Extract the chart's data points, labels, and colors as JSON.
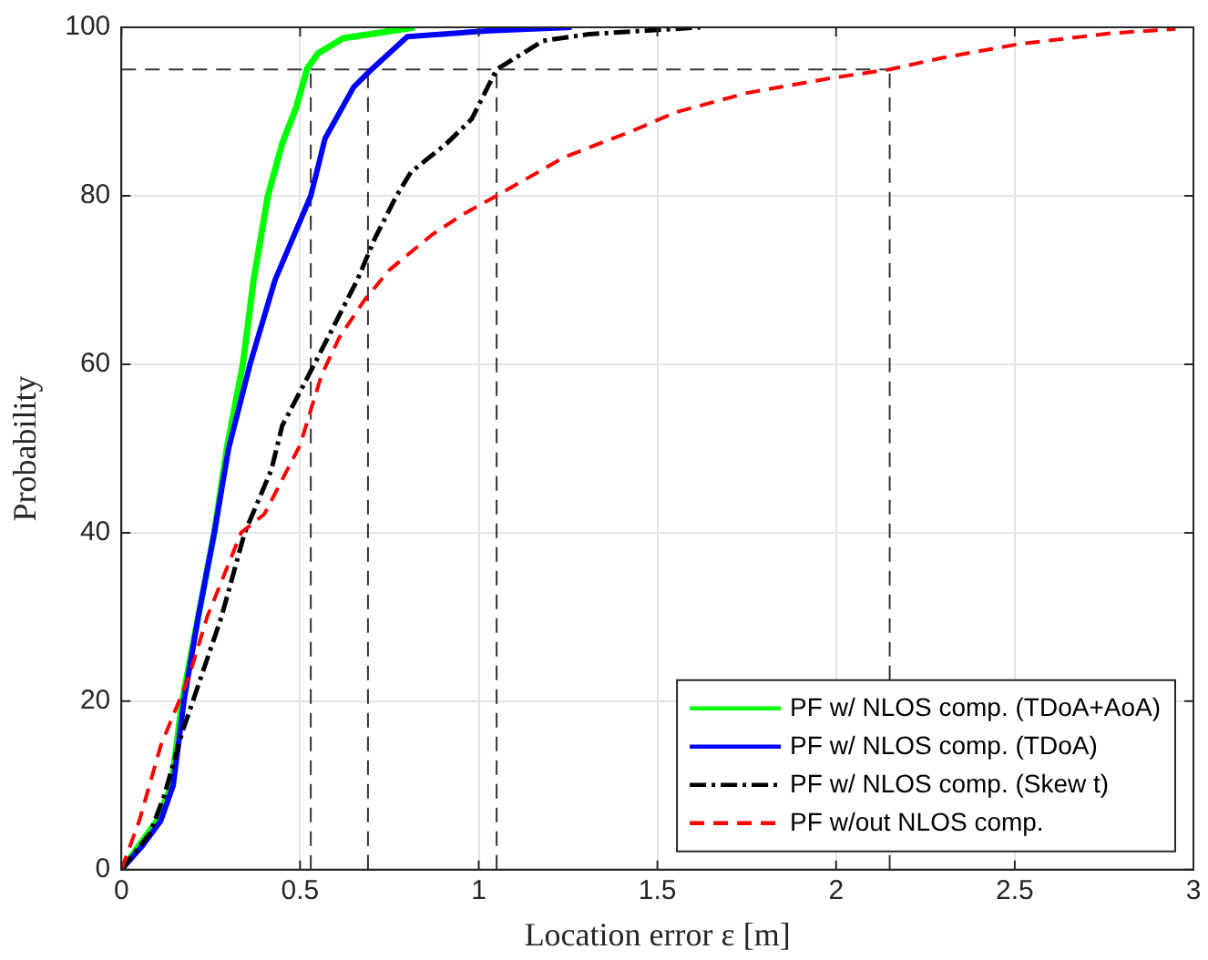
{
  "chart_data": {
    "type": "line",
    "xlabel": "Location error ε [m]",
    "ylabel": "Probability",
    "xlim": [
      0,
      3
    ],
    "ylim": [
      0,
      100
    ],
    "xticks": [
      0,
      0.5,
      1,
      1.5,
      2,
      2.5,
      3
    ],
    "yticks": [
      0,
      20,
      40,
      60,
      80,
      100
    ],
    "grid": true,
    "legend": "bottom right",
    "marker": "none",
    "series": [
      {
        "name": "PF w/ NLOS comp. (TDoA+AoA)",
        "color": "#00ff00",
        "line_style": "solid",
        "x": [
          0,
          0.05,
          0.1,
          0.14,
          0.17,
          0.215,
          0.26,
          0.295,
          0.34,
          0.37,
          0.41,
          0.45,
          0.49,
          0.52,
          0.55,
          0.62,
          0.73,
          0.82
        ],
        "values": [
          0,
          2.9,
          5.8,
          10,
          20,
          30,
          40,
          50,
          60,
          70,
          80,
          86.2,
          90.6,
          95.1,
          96.9,
          98.7,
          99.4,
          100
        ]
      },
      {
        "name": "PF w/ NLOS comp. (TDoA)",
        "color": "#0000ff",
        "line_style": "solid",
        "x": [
          0,
          0.06,
          0.11,
          0.145,
          0.175,
          0.215,
          0.26,
          0.3,
          0.36,
          0.43,
          0.53,
          0.57,
          0.65,
          0.7,
          0.8,
          1.03,
          1.26
        ],
        "values": [
          0,
          2.9,
          5.8,
          10,
          20,
          30,
          40,
          50,
          60,
          70,
          80,
          86.8,
          92.9,
          95,
          98.9,
          99.6,
          100
        ]
      },
      {
        "name": "PF w/ NLOS comp. (Skew t)",
        "color": "#000000",
        "line_style": "dashdot",
        "x": [
          0,
          0.08,
          0.12,
          0.17,
          0.2,
          0.28,
          0.345,
          0.42,
          0.45,
          0.54,
          0.66,
          0.71,
          0.77,
          0.81,
          0.91,
          0.98,
          1.05,
          1.18,
          1.31,
          1.62
        ],
        "values": [
          0,
          4.3,
          8.8,
          16.3,
          20,
          30,
          40,
          47.5,
          52.7,
          60,
          70,
          75,
          80,
          82.8,
          86.2,
          89.1,
          95,
          98.4,
          99.2,
          100
        ]
      },
      {
        "name": "PF w/out NLOS comp.",
        "color": "#ff0000",
        "line_style": "dashed",
        "x": [
          0,
          0.05,
          0.11,
          0.19,
          0.24,
          0.335,
          0.4,
          0.5,
          0.56,
          0.61,
          0.68,
          0.75,
          0.87,
          0.96,
          1.05,
          1.24,
          1.43,
          1.55,
          1.75,
          1.99,
          2.15,
          2.3,
          2.51,
          2.77,
          2.95
        ],
        "values": [
          0,
          5.8,
          14.7,
          23,
          30,
          40,
          42.2,
          50.4,
          58.7,
          63.2,
          67.6,
          71.2,
          75.4,
          77.9,
          80,
          84.6,
          87.7,
          89.9,
          92.2,
          94,
          95,
          96.4,
          98,
          99.3,
          99.8
        ]
      }
    ],
    "ref_lines": [
      {
        "axis": "y",
        "value": 95,
        "color": "#333333",
        "line_style": "dashed"
      },
      {
        "axis": "x",
        "value": 0.53,
        "color": "#333333",
        "line_style": "dashed"
      },
      {
        "axis": "x",
        "value": 0.69,
        "color": "#333333",
        "line_style": "dashed"
      },
      {
        "axis": "x",
        "value": 1.05,
        "color": "#333333",
        "line_style": "dashed"
      },
      {
        "axis": "x",
        "value": 2.15,
        "color": "#333333",
        "line_style": "dashed"
      }
    ]
  }
}
